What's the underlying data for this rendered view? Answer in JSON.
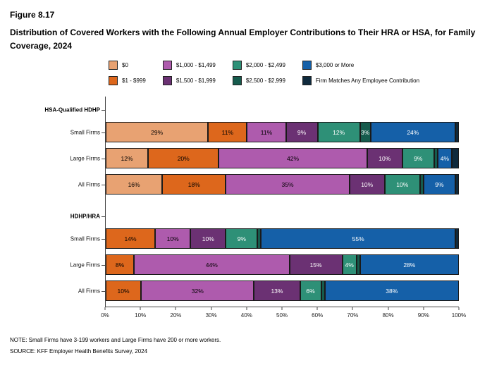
{
  "figure": {
    "number": "Figure 8.17",
    "title": "Distribution of Covered Workers with the Following Annual Employer Contributions to Their HRA or HSA, for Family Coverage, 2024"
  },
  "note": "NOTE: Small Firms have 3-199 workers and Large Firms have 200 or more workers.",
  "source": "SOURCE: KFF Employer Health Benefits Survey, 2024",
  "chart_data": {
    "type": "bar",
    "orientation": "horizontal",
    "stacked": true,
    "xlim": [
      0,
      100
    ],
    "x_ticks": [
      "0%",
      "10%",
      "20%",
      "30%",
      "40%",
      "50%",
      "60%",
      "70%",
      "80%",
      "90%",
      "100%"
    ],
    "label_threshold": 3,
    "legend_position": "top",
    "series": [
      {
        "name": "$0",
        "color": "#E8A272",
        "text_color": "#000000"
      },
      {
        "name": "$1 - $999",
        "color": "#DD671C",
        "text_color": "#000000"
      },
      {
        "name": "$1,000 - $1,499",
        "color": "#AE5BAD",
        "text_color": "#000000"
      },
      {
        "name": "$1,500 - $1,999",
        "color": "#6B3173",
        "text_color": "#FFFFFF"
      },
      {
        "name": "$2,000 - $2,499",
        "color": "#2E9077",
        "text_color": "#FFFFFF"
      },
      {
        "name": "$2,500 - $2,999",
        "color": "#165B4D",
        "text_color": "#FFFFFF"
      },
      {
        "name": "$3,000 or More",
        "color": "#1560A8",
        "text_color": "#FFFFFF"
      },
      {
        "name": "Firm Matches Any Employee Contribution",
        "color": "#0F2A3D",
        "text_color": "#FFFFFF"
      }
    ],
    "groups": [
      {
        "label": "HSA-Qualified HDHP",
        "rows": [
          {
            "label": "Small Firms",
            "values": [
              29,
              11,
              11,
              9,
              12,
              3,
              24,
              1
            ]
          },
          {
            "label": "Large Firms",
            "values": [
              12,
              20,
              42,
              10,
              9,
              1,
              4,
              2
            ]
          },
          {
            "label": "All Firms",
            "values": [
              16,
              18,
              35,
              10,
              10,
              1,
              9,
              1
            ]
          }
        ]
      },
      {
        "label": "HDHP/HRA",
        "rows": [
          {
            "label": "Small Firms",
            "values": [
              0,
              14,
              10,
              10,
              9,
              1,
              55,
              1
            ]
          },
          {
            "label": "Large Firms",
            "values": [
              0,
              8,
              44,
              15,
              4,
              1,
              28,
              0
            ]
          },
          {
            "label": "All Firms",
            "values": [
              0,
              10,
              32,
              13,
              6,
              1,
              38,
              0
            ]
          }
        ]
      }
    ]
  }
}
